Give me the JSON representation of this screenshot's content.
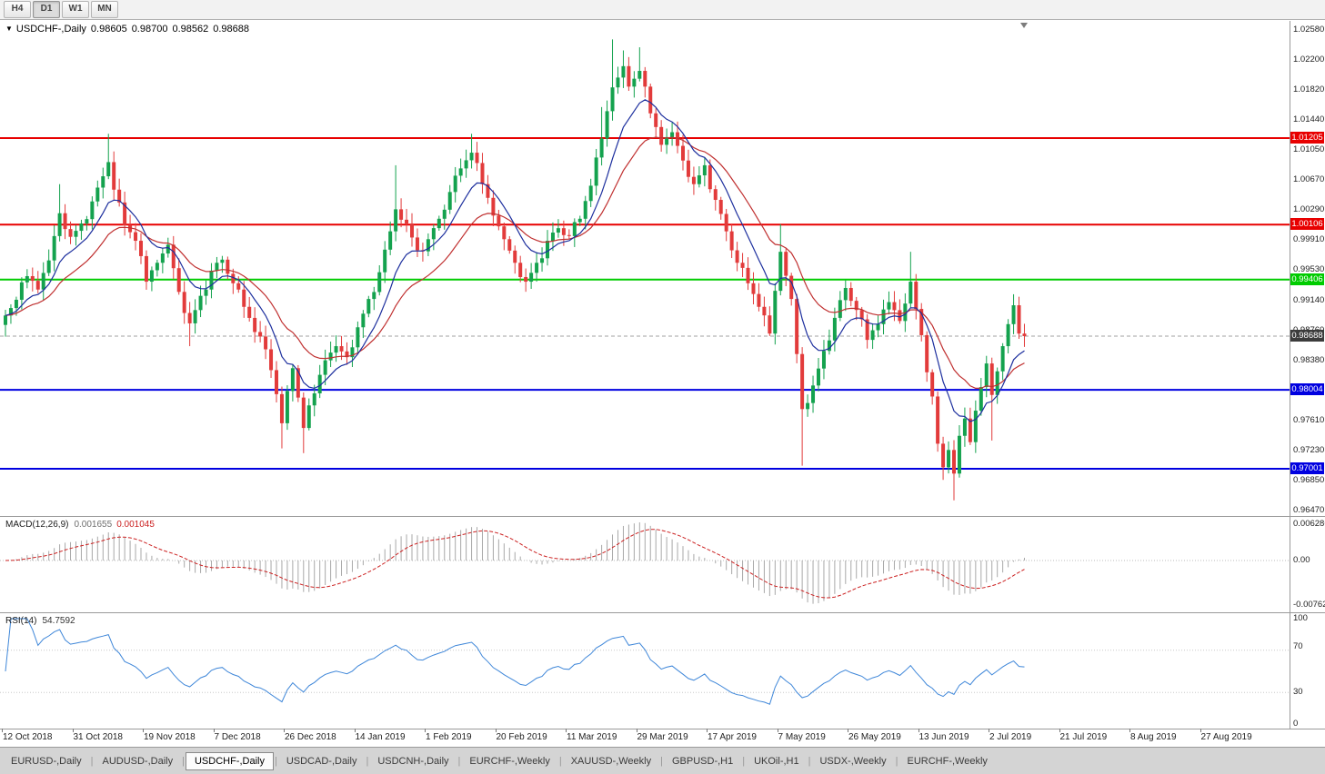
{
  "toolbar": {
    "timeframes": [
      {
        "label": "H4",
        "active": false
      },
      {
        "label": "D1",
        "active": true
      },
      {
        "label": "W1",
        "active": false
      },
      {
        "label": "MN",
        "active": false
      }
    ]
  },
  "chart": {
    "collapse_marker": "▼",
    "symbol": "USDCHF-,Daily",
    "ohlc": {
      "open": "0.98605",
      "high": "0.98700",
      "low": "0.98562",
      "close": "0.98688"
    },
    "axis_labels": [
      "1.02580",
      "1.02200",
      "1.01820",
      "1.01440",
      "1.01050",
      "1.00670",
      "1.00290",
      "0.99910",
      "0.99530",
      "0.99140",
      "0.98760",
      "0.98380",
      "0.97610",
      "0.97230",
      "0.96850",
      "0.96470"
    ],
    "levels": [
      {
        "value": "1.01205",
        "price": 1.01205,
        "color": "#e80000",
        "kind": "resistance"
      },
      {
        "value": "1.00106",
        "price": 1.00106,
        "color": "#e80000",
        "kind": "resistance"
      },
      {
        "value": "0.99406",
        "price": 0.99406,
        "color": "#00cc00",
        "kind": "pivot"
      },
      {
        "value": "0.98004",
        "price": 0.98004,
        "color": "#0000e0",
        "kind": "support"
      },
      {
        "value": "0.97001",
        "price": 0.97001,
        "color": "#0000e0",
        "kind": "support"
      }
    ],
    "current_price": {
      "value": "0.98688",
      "price": 0.98688
    }
  },
  "macd_panel": {
    "label": "MACD(12,26,9)",
    "value_main": "0.001655",
    "value_signal": "0.001045",
    "axis_top": "0.006286",
    "axis_mid": "0.00",
    "axis_bottom": "-0.00762"
  },
  "rsi_panel": {
    "label": "RSI(14)",
    "value": "54.7592",
    "axis": [
      "100",
      "70",
      "30",
      "0"
    ]
  },
  "time_axis": {
    "labels": [
      "12 Oct 2018",
      "31 Oct 2018",
      "19 Nov 2018",
      "7 Dec 2018",
      "26 Dec 2018",
      "14 Jan 2019",
      "1 Feb 2019",
      "20 Feb 2019",
      "11 Mar 2019",
      "29 Mar 2019",
      "17 Apr 2019",
      "7 May 2019",
      "26 May 2019",
      "13 Jun 2019",
      "2 Jul 2019",
      "21 Jul 2019",
      "8 Aug 2019",
      "27 Aug 2019"
    ]
  },
  "tabs": [
    {
      "label": "EURUSD-,Daily",
      "active": false
    },
    {
      "label": "AUDUSD-,Daily",
      "active": false
    },
    {
      "label": "USDCHF-,Daily",
      "active": true
    },
    {
      "label": "USDCAD-,Daily",
      "active": false
    },
    {
      "label": "USDCNH-,Daily",
      "active": false
    },
    {
      "label": "EURCHF-,Weekly",
      "active": false
    },
    {
      "label": "XAUUSD-,Weekly",
      "active": false
    },
    {
      "label": "GBPUSD-,H1",
      "active": false
    },
    {
      "label": "UKOil-,H1",
      "active": false
    },
    {
      "label": "USDX-,Weekly",
      "active": false
    },
    {
      "label": "EURCHF-,Weekly",
      "active": false
    }
  ],
  "chart_data": {
    "type": "candlestick",
    "symbol": "USDCHF",
    "timeframe": "Daily",
    "ohlc_current": {
      "open": 0.98605,
      "high": 0.987,
      "low": 0.98562,
      "close": 0.98688
    },
    "y_range": [
      0.9647,
      1.0258
    ],
    "bars_total": 189,
    "x_labels": [
      "12 Oct 2018",
      "31 Oct 2018",
      "19 Nov 2018",
      "7 Dec 2018",
      "26 Dec 2018",
      "14 Jan 2019",
      "1 Feb 2019",
      "20 Feb 2019",
      "11 Mar 2019",
      "29 Mar 2019",
      "17 Apr 2019",
      "7 May 2019",
      "26 May 2019",
      "13 Jun 2019",
      "2 Jul 2019",
      "21 Jul 2019",
      "8 Aug 2019",
      "27 Aug 2019"
    ],
    "key_levels": [
      1.01205,
      1.00106,
      0.99406,
      0.98004,
      0.97001
    ],
    "close_waypoints": [
      [
        0,
        0.9895
      ],
      [
        2,
        0.9915
      ],
      [
        4,
        0.9945
      ],
      [
        6,
        0.9928
      ],
      [
        8,
        0.9965
      ],
      [
        10,
        1.0025
      ],
      [
        12,
        0.9995
      ],
      [
        14,
        1.0012
      ],
      [
        16,
        1.004
      ],
      [
        18,
        1.0072
      ],
      [
        19,
        1.009
      ],
      [
        20,
        1.0055
      ],
      [
        22,
        1.001
      ],
      [
        24,
        0.999
      ],
      [
        26,
        0.9938
      ],
      [
        28,
        0.9962
      ],
      [
        30,
        0.9985
      ],
      [
        32,
        0.9925
      ],
      [
        34,
        0.9885
      ],
      [
        36,
        0.992
      ],
      [
        38,
        0.9952
      ],
      [
        40,
        0.9966
      ],
      [
        42,
        0.9936
      ],
      [
        44,
        0.9906
      ],
      [
        46,
        0.9874
      ],
      [
        48,
        0.9852
      ],
      [
        50,
        0.9795
      ],
      [
        51,
        0.9758
      ],
      [
        53,
        0.9828
      ],
      [
        55,
        0.9752
      ],
      [
        57,
        0.9796
      ],
      [
        59,
        0.9838
      ],
      [
        61,
        0.9856
      ],
      [
        63,
        0.9842
      ],
      [
        65,
        0.988
      ],
      [
        67,
        0.9916
      ],
      [
        69,
        0.995
      ],
      [
        71,
        1.0002
      ],
      [
        72,
        1.003
      ],
      [
        74,
        1.0012
      ],
      [
        76,
        0.9978
      ],
      [
        78,
        0.9992
      ],
      [
        80,
        1.0018
      ],
      [
        82,
        1.0052
      ],
      [
        84,
        1.0082
      ],
      [
        86,
        1.0102
      ],
      [
        88,
        1.0062
      ],
      [
        90,
        1.0022
      ],
      [
        92,
        0.9992
      ],
      [
        94,
        0.9962
      ],
      [
        96,
        0.9938
      ],
      [
        98,
        0.9962
      ],
      [
        100,
        0.999
      ],
      [
        102,
        1.0006
      ],
      [
        104,
        0.9996
      ],
      [
        106,
        1.0018
      ],
      [
        108,
        1.006
      ],
      [
        110,
        1.012
      ],
      [
        112,
        1.0185
      ],
      [
        114,
        1.0212
      ],
      [
        115,
        1.0186
      ],
      [
        117,
        1.0206
      ],
      [
        119,
        1.0152
      ],
      [
        121,
        1.0112
      ],
      [
        123,
        1.0128
      ],
      [
        125,
        1.0092
      ],
      [
        127,
        1.0062
      ],
      [
        129,
        1.0086
      ],
      [
        131,
        1.0042
      ],
      [
        133,
        1.0002
      ],
      [
        135,
        0.9962
      ],
      [
        137,
        0.9936
      ],
      [
        139,
        0.9906
      ],
      [
        141,
        0.9872
      ],
      [
        143,
        0.9976
      ],
      [
        145,
        0.9916
      ],
      [
        146,
        0.9846
      ],
      [
        147,
        0.9776
      ],
      [
        149,
        0.9806
      ],
      [
        151,
        0.985
      ],
      [
        153,
        0.9892
      ],
      [
        155,
        0.993
      ],
      [
        157,
        0.9902
      ],
      [
        159,
        0.9864
      ],
      [
        161,
        0.9884
      ],
      [
        163,
        0.9912
      ],
      [
        165,
        0.9888
      ],
      [
        167,
        0.9938
      ],
      [
        169,
        0.987
      ],
      [
        171,
        0.9792
      ],
      [
        172,
        0.9732
      ],
      [
        173,
        0.9702
      ],
      [
        174,
        0.9724
      ],
      [
        175,
        0.9694
      ],
      [
        176,
        0.9742
      ],
      [
        177,
        0.9764
      ],
      [
        178,
        0.9734
      ],
      [
        179,
        0.9774
      ],
      [
        180,
        0.9804
      ],
      [
        181,
        0.9834
      ],
      [
        182,
        0.9794
      ],
      [
        183,
        0.9824
      ],
      [
        184,
        0.9856
      ],
      [
        185,
        0.9884
      ],
      [
        186,
        0.9908
      ],
      [
        187,
        0.9872
      ],
      [
        188,
        0.98688
      ]
    ],
    "wick_anchors": {
      "highs": [
        [
          10,
          1.0062
        ],
        [
          19,
          1.0126
        ],
        [
          72,
          1.0086
        ],
        [
          86,
          1.0126
        ],
        [
          110,
          1.016
        ],
        [
          112,
          1.0246
        ],
        [
          114,
          1.0232
        ],
        [
          117,
          1.0236
        ],
        [
          143,
          1.0011
        ],
        [
          167,
          0.9976
        ],
        [
          186,
          0.9922
        ]
      ],
      "lows": [
        [
          0,
          0.9868
        ],
        [
          34,
          0.9856
        ],
        [
          51,
          0.9726
        ],
        [
          55,
          0.972
        ],
        [
          147,
          0.9704
        ],
        [
          173,
          0.9686
        ],
        [
          175,
          0.966
        ],
        [
          182,
          0.9736
        ]
      ]
    },
    "indicators": {
      "ma_fast": {
        "type": "EMA",
        "period": 9
      },
      "ma_slow": {
        "type": "EMA",
        "period": 20
      },
      "macd": {
        "fast": 12,
        "slow": 26,
        "signal": 9,
        "last_main": 0.001655,
        "last_signal": 0.001045,
        "axis": [
          "0.006286",
          "0.00",
          "-0.00762"
        ]
      },
      "rsi": {
        "period": 14,
        "last": 54.7592,
        "levels": [
          100,
          70,
          30,
          0
        ]
      }
    },
    "palette": {
      "up": "#14a24e",
      "down": "#e23b3b",
      "ma_fast": "#1d2f9e",
      "ma_slow": "#c03030",
      "level_red": "#e80000",
      "level_green": "#00cc00",
      "level_blue": "#0000e0",
      "current_box": "#3c3c3c",
      "current_line": "#a0a0a0",
      "macd_hist": "#a8a8a8",
      "macd_signal": "#cc2222",
      "rsi_line": "#3f87d9"
    }
  }
}
